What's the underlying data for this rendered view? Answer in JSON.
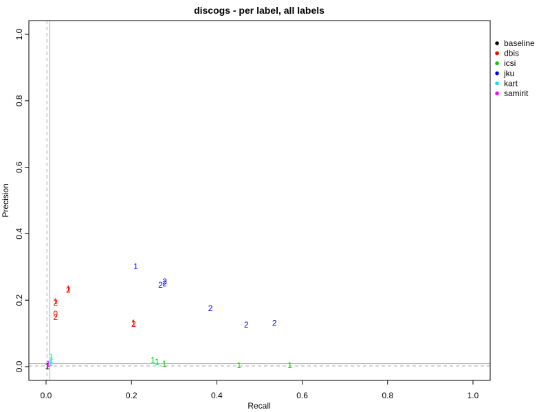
{
  "chart_data": {
    "type": "scatter",
    "title": "discogs - per label, all labels",
    "xlabel": "Recall",
    "ylabel": "Precision",
    "xlim": [
      0,
      1
    ],
    "ylim": [
      0,
      1
    ],
    "xticks": [
      "0.0",
      "0.2",
      "0.4",
      "0.6",
      "0.8",
      "1.0"
    ],
    "yticks": [
      "0.0",
      "0.2",
      "0.4",
      "0.6",
      "0.8",
      "1.0"
    ],
    "grid": false,
    "legend_position": "right",
    "reference_lines": {
      "dashed": {
        "x": 0.002,
        "y": 0.002
      },
      "solid": {
        "x": 0.009,
        "y": 0.009
      }
    },
    "series": [
      {
        "name": "baseline",
        "color": "#000000",
        "points": [
          {
            "x": 0.003,
            "y": 0.001,
            "label": "1"
          }
        ]
      },
      {
        "name": "dbis",
        "color": "#ff0000",
        "points": [
          {
            "x": 0.052,
            "y": 0.234,
            "label": "1"
          },
          {
            "x": 0.052,
            "y": 0.23,
            "label": "2"
          },
          {
            "x": 0.022,
            "y": 0.196,
            "label": "1"
          },
          {
            "x": 0.022,
            "y": 0.192,
            "label": "2"
          },
          {
            "x": 0.022,
            "y": 0.159,
            "label": "0"
          },
          {
            "x": 0.022,
            "y": 0.149,
            "label": "2"
          },
          {
            "x": 0.205,
            "y": 0.132,
            "label": "1"
          },
          {
            "x": 0.205,
            "y": 0.128,
            "label": "2"
          }
        ]
      },
      {
        "name": "icsi",
        "color": "#00cd00",
        "points": [
          {
            "x": 0.25,
            "y": 0.02,
            "label": "1"
          },
          {
            "x": 0.26,
            "y": 0.014,
            "label": "1"
          },
          {
            "x": 0.277,
            "y": 0.008,
            "label": "1"
          },
          {
            "x": 0.452,
            "y": 0.004,
            "label": "1"
          },
          {
            "x": 0.571,
            "y": 0.004,
            "label": "1"
          }
        ]
      },
      {
        "name": "jku",
        "color": "#0000ff",
        "points": [
          {
            "x": 0.21,
            "y": 0.302,
            "label": "1"
          },
          {
            "x": 0.268,
            "y": 0.246,
            "label": "2"
          },
          {
            "x": 0.278,
            "y": 0.256,
            "label": "2"
          },
          {
            "x": 0.278,
            "y": 0.25,
            "label": "2"
          },
          {
            "x": 0.385,
            "y": 0.176,
            "label": "2"
          },
          {
            "x": 0.469,
            "y": 0.126,
            "label": "2"
          },
          {
            "x": 0.535,
            "y": 0.131,
            "label": "2"
          }
        ]
      },
      {
        "name": "kart",
        "color": "#00e5ee",
        "points": [
          {
            "x": 0.012,
            "y": 0.03,
            "label": "1"
          },
          {
            "x": 0.012,
            "y": 0.02,
            "label": "1"
          },
          {
            "x": 0.011,
            "y": 0.01,
            "label": "1"
          }
        ]
      },
      {
        "name": "samirit",
        "color": "#ff00ff",
        "points": [
          {
            "x": 0.005,
            "y": 0.008,
            "label": "1"
          }
        ]
      }
    ]
  }
}
